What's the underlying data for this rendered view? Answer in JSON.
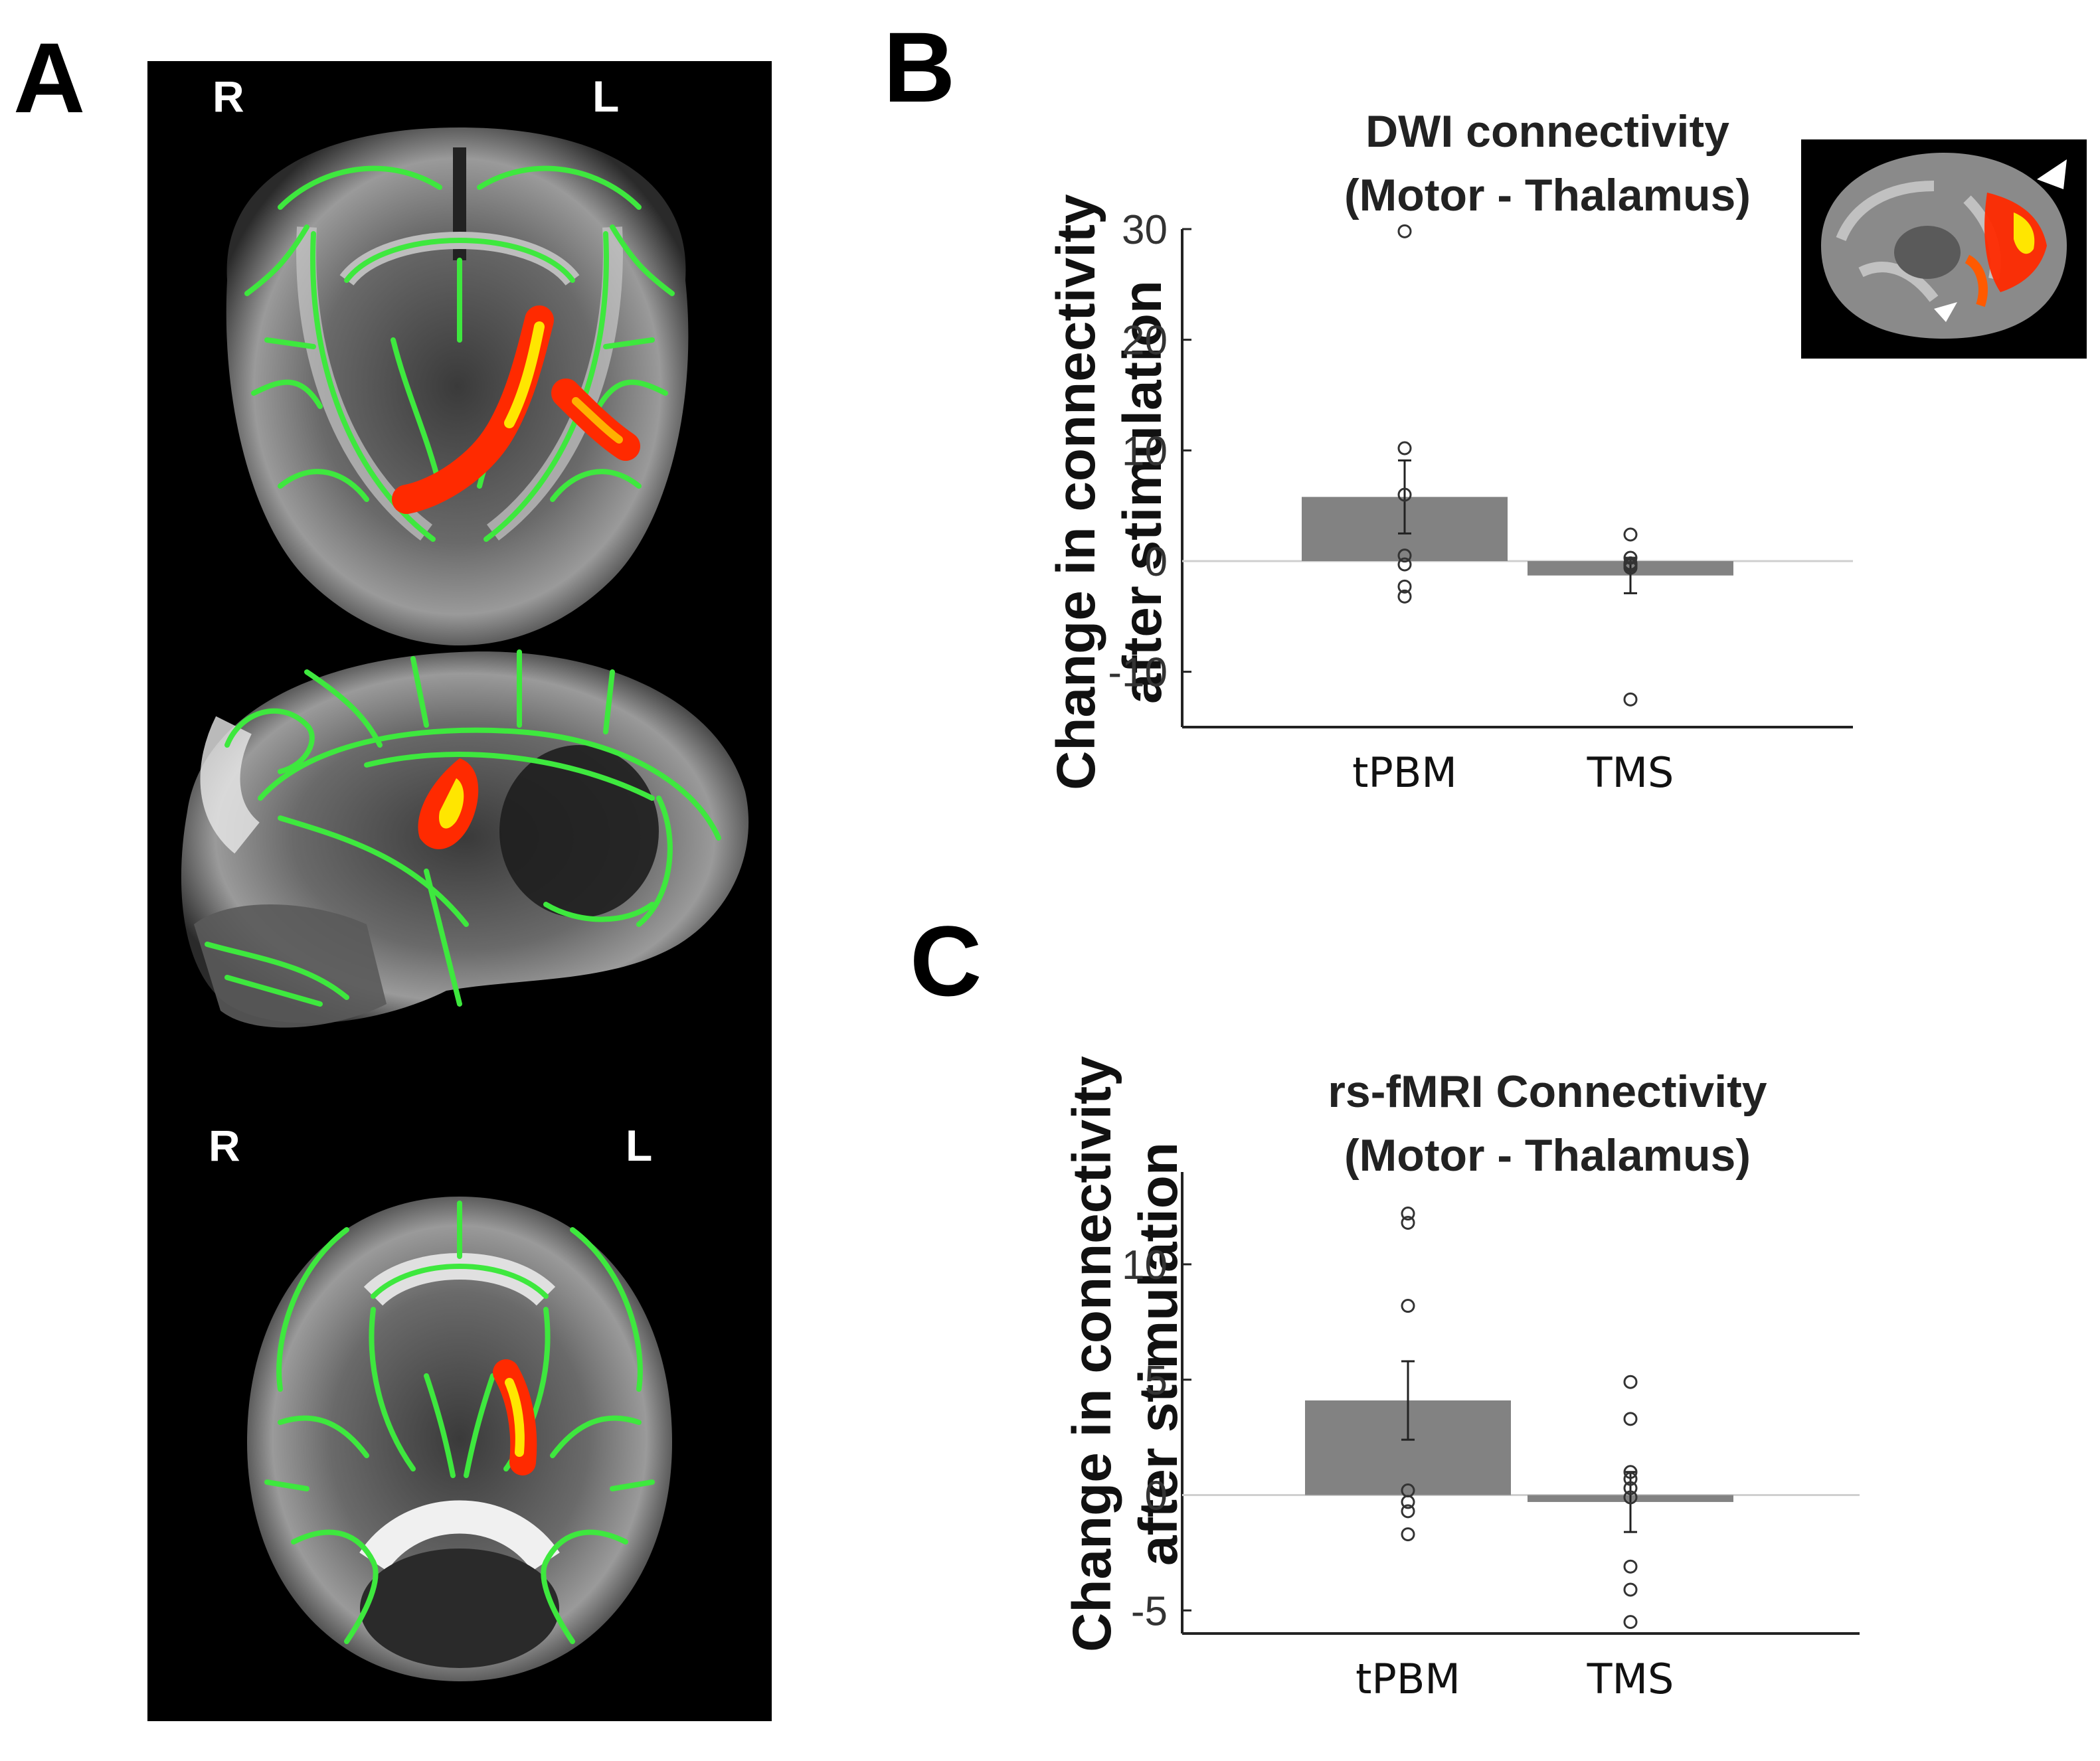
{
  "panels": {
    "a_label": "A",
    "b_label": "B",
    "c_label": "C"
  },
  "brain": {
    "coronal_right": "R",
    "coronal_left": "L",
    "axial_right": "R",
    "axial_left": "L",
    "tract_color": "#3ee83e",
    "cluster_color": "#ff2a00",
    "cluster_core_color": "#ffe600"
  },
  "chart_data": [
    {
      "type": "bar",
      "title": "DWI connectivity\n(Motor - Thalamus)",
      "ylabel": "Change in connectivity\nafter stimulation",
      "xlabel": "",
      "categories": [
        "tPBM",
        "TMS"
      ],
      "values": [
        5.8,
        -1.3
      ],
      "error": [
        3.3,
        1.6
      ],
      "points": [
        [
          29.8,
          10.2,
          6.0,
          0.5,
          -0.3,
          -2.3,
          -3.2
        ],
        [
          2.4,
          0.3,
          -0.2,
          -0.3,
          -0.4,
          -0.6,
          -12.5
        ]
      ],
      "ylim": [
        -15,
        30
      ],
      "yticks": [
        -10,
        0,
        10,
        20,
        30
      ],
      "bar_color": "#828282",
      "grid": false
    },
    {
      "type": "bar",
      "title": "rs-fMRI Connectivity\n(Motor - Thalamus)",
      "ylabel": "Change in connectivity\nafter stimulation",
      "xlabel": "",
      "categories": [
        "tPBM",
        "TMS"
      ],
      "values": [
        4.1,
        -0.3
      ],
      "error": [
        1.7,
        1.3
      ],
      "points": [
        [
          12.2,
          11.8,
          8.2,
          0.2,
          -0.3,
          -0.7,
          -1.7
        ],
        [
          4.9,
          3.3,
          1.0,
          0.7,
          0.3,
          -0.1,
          -3.1,
          -4.1,
          -5.5
        ]
      ],
      "ylim": [
        -6,
        14
      ],
      "yticks": [
        -5,
        0,
        5,
        10
      ],
      "bar_color": "#828282",
      "grid": false
    }
  ]
}
